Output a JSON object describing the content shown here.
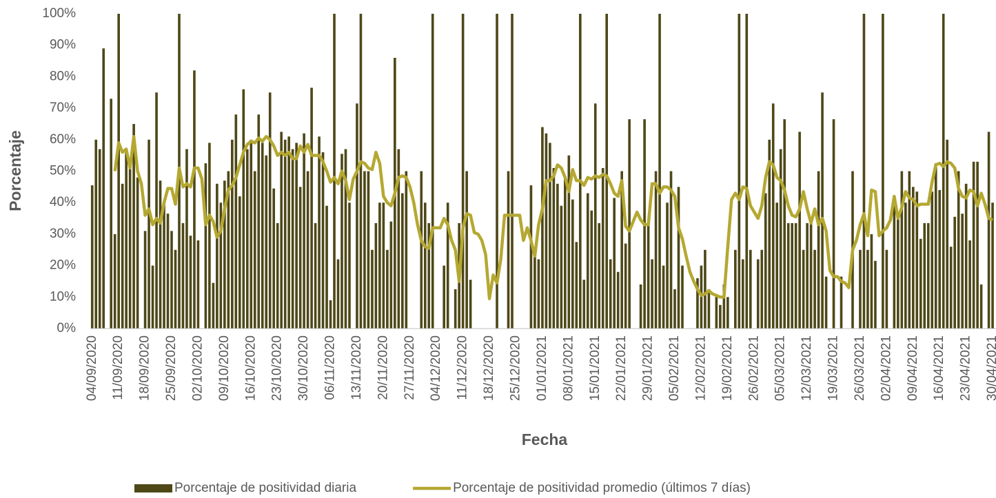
{
  "chart_data": {
    "type": "bar",
    "xlabel": "Fecha",
    "ylabel": "Porcentaje",
    "categories": [
      "04/09/2020",
      null,
      null,
      null,
      null,
      null,
      null,
      "11/09/2020",
      null,
      null,
      null,
      null,
      null,
      null,
      "18/09/2020",
      null,
      null,
      null,
      null,
      null,
      null,
      "25/09/2020",
      null,
      null,
      null,
      null,
      null,
      null,
      "02/10/2020",
      null,
      null,
      null,
      null,
      null,
      null,
      "09/10/2020",
      null,
      null,
      null,
      null,
      null,
      null,
      "16/10/2020",
      null,
      null,
      null,
      null,
      null,
      null,
      "23/10/2020",
      null,
      null,
      null,
      null,
      null,
      null,
      "30/10/2020",
      null,
      null,
      null,
      null,
      null,
      null,
      "06/11/2020",
      null,
      null,
      null,
      null,
      null,
      null,
      "13/11/2020",
      null,
      null,
      null,
      null,
      null,
      null,
      "20/11/2020",
      null,
      null,
      null,
      null,
      null,
      null,
      "27/11/2020",
      null,
      null,
      null,
      null,
      null,
      null,
      "04/12/2020",
      null,
      null,
      null,
      null,
      null,
      null,
      "11/12/2020",
      null,
      null,
      null,
      null,
      null,
      null,
      "18/12/2020",
      null,
      null,
      null,
      null,
      null,
      null,
      "25/12/2020",
      null,
      null,
      null,
      null,
      null,
      null,
      "01/01/2021",
      null,
      null,
      null,
      null,
      null,
      null,
      "08/01/2021",
      null,
      null,
      null,
      null,
      null,
      null,
      "15/01/2021",
      null,
      null,
      null,
      null,
      null,
      null,
      "22/01/2021",
      null,
      null,
      null,
      null,
      null,
      null,
      "29/01/2021",
      null,
      null,
      null,
      null,
      null,
      null,
      "05/02/2021",
      null,
      null,
      null,
      null,
      null,
      null,
      "12/02/2021",
      null,
      null,
      null,
      null,
      null,
      null,
      "19/02/2021",
      null,
      null,
      null,
      null,
      null,
      null,
      "26/02/2021",
      null,
      null,
      null,
      null,
      null,
      null,
      "05/03/2021",
      null,
      null,
      null,
      null,
      null,
      null,
      "12/03/2021",
      null,
      null,
      null,
      null,
      null,
      null,
      "19/03/2021",
      null,
      null,
      null,
      null,
      null,
      null,
      "26/03/2021",
      null,
      null,
      null,
      null,
      null,
      null,
      "02/04/2021",
      null,
      null,
      null,
      null,
      null,
      null,
      "09/04/2021",
      null,
      null,
      null,
      null,
      null,
      null,
      "16/04/2021",
      null,
      null,
      null,
      null,
      null,
      null,
      "23/04/2021",
      null,
      null,
      null,
      null,
      null,
      null,
      "30/04/2021"
    ],
    "series": [
      {
        "name": "Porcentaje de positividad diaria",
        "type": "bar",
        "color": "#4e4818",
        "values": [
          45.5,
          60,
          57,
          89,
          null,
          73,
          30,
          100,
          46,
          56,
          52,
          65,
          48,
          null,
          31,
          60,
          20,
          75,
          47,
          40,
          36.5,
          31,
          25,
          100,
          33.5,
          57,
          29.5,
          82,
          28,
          null,
          52.5,
          59,
          14.5,
          46,
          40,
          47,
          50,
          60,
          68,
          42,
          76,
          57,
          60,
          50,
          68,
          59,
          55,
          75,
          44.5,
          33.5,
          62.5,
          60,
          61,
          57,
          59,
          45,
          62,
          50,
          76.5,
          33.5,
          61,
          56,
          39,
          9,
          100,
          22,
          55.5,
          57,
          40,
          null,
          71.5,
          100,
          50,
          50,
          25,
          33.5,
          40,
          40,
          25,
          34,
          86,
          57,
          43,
          50,
          null,
          null,
          null,
          50,
          40,
          33.5,
          100,
          null,
          null,
          20,
          40,
          null,
          12.5,
          33.5,
          100,
          50,
          15.5,
          null,
          null,
          null,
          null,
          null,
          null,
          100,
          null,
          null,
          50,
          100,
          null,
          null,
          null,
          null,
          45.5,
          25,
          22,
          64,
          62,
          59,
          51,
          46,
          39,
          48,
          55,
          41,
          27.5,
          100,
          15.5,
          43,
          37.5,
          71.5,
          33.5,
          51,
          100,
          22,
          41.5,
          18,
          50,
          27,
          66.5,
          null,
          null,
          14,
          66.5,
          33.5,
          22,
          50,
          100,
          20,
          40,
          50,
          12.5,
          45,
          20,
          null,
          null,
          null,
          16,
          20,
          25,
          12.5,
          null,
          10,
          7.5,
          14,
          10,
          null,
          25,
          100,
          22,
          100,
          25,
          null,
          22,
          25,
          43,
          60,
          71.5,
          40,
          57,
          66.5,
          33.5,
          33.5,
          33.5,
          62.5,
          25,
          33.5,
          33.5,
          25,
          50,
          75,
          16.5,
          null,
          66.5,
          null,
          16.5,
          null,
          null,
          50,
          null,
          25,
          100,
          25,
          30,
          21.5,
          null,
          100,
          25,
          null,
          40,
          36,
          50,
          40,
          50,
          45,
          43.5,
          28.5,
          33.5,
          33.5,
          43.5,
          52.5,
          44,
          100,
          60,
          26,
          35.5,
          50,
          36.5,
          46,
          28,
          53,
          53,
          14,
          null,
          62.5,
          40
        ]
      },
      {
        "name": "Porcentaje de positividad promedio (últimos 7 días)",
        "type": "line",
        "color": "#b5a832",
        "values": [
          null,
          null,
          null,
          null,
          null,
          null,
          50,
          59,
          56,
          57,
          51,
          61,
          50,
          46,
          36,
          38,
          33,
          35,
          33.5,
          40,
          44.5,
          44.5,
          39.5,
          51,
          45,
          46,
          45,
          51,
          51,
          47.5,
          33,
          36,
          34,
          29,
          31,
          38,
          44,
          45.5,
          48,
          52,
          56,
          58.5,
          59.5,
          59,
          60.5,
          59.5,
          61,
          60,
          58,
          55,
          56,
          55,
          56,
          54,
          54,
          58,
          56,
          58.5,
          55,
          55,
          55,
          53,
          50,
          46.5,
          48,
          46,
          50,
          47,
          41,
          47.5,
          50,
          53,
          52.5,
          51,
          50.5,
          56,
          52.5,
          42,
          40,
          39,
          43,
          48,
          48.5,
          48,
          45,
          40,
          33,
          28,
          26,
          25.5,
          32,
          32,
          32,
          35,
          33,
          28,
          25,
          15,
          32,
          36.5,
          36,
          30.5,
          30,
          28,
          23.5,
          9.5,
          17,
          14.5,
          22,
          36,
          36,
          36,
          36,
          36,
          28,
          32,
          28,
          23,
          33,
          38,
          47,
          47,
          48.5,
          52,
          51,
          48,
          43.5,
          50.5,
          47,
          47,
          45.5,
          48,
          47.5,
          48.5,
          48,
          49,
          48.5,
          46,
          43,
          42,
          47,
          32.5,
          31,
          34,
          37,
          34.5,
          33,
          33,
          46,
          46,
          43,
          45,
          45,
          44,
          42,
          32,
          28.5,
          23,
          18,
          15,
          12.5,
          10.5,
          11,
          12,
          11,
          10.5,
          10,
          10,
          26,
          41,
          43,
          41,
          45,
          44.5,
          39,
          37,
          35,
          39,
          48,
          53,
          52,
          48,
          47,
          44,
          39,
          36,
          35.5,
          38,
          43.5,
          38,
          33.5,
          38,
          33,
          35,
          31,
          18.5,
          16.5,
          16.5,
          15,
          14.5,
          13,
          25,
          28,
          33,
          36.5,
          29.5,
          44,
          43.5,
          29.5,
          31,
          32,
          34.5,
          42,
          35,
          38.5,
          43.5,
          41.5,
          41,
          39,
          39.5,
          39.5,
          39.5,
          46.5,
          52,
          52.5,
          51.5,
          53,
          52.5,
          51,
          44.5,
          42,
          41.5,
          44,
          43.5,
          39,
          43,
          39.5,
          35,
          34.5
        ]
      }
    ],
    "ylim": [
      0,
      100
    ],
    "yticks": [
      {
        "value": 0,
        "label": "0%"
      },
      {
        "value": 10,
        "label": "10%"
      },
      {
        "value": 20,
        "label": "20%"
      },
      {
        "value": 30,
        "label": "30%"
      },
      {
        "value": 40,
        "label": "40%"
      },
      {
        "value": 50,
        "label": "50%"
      },
      {
        "value": 60,
        "label": "60%"
      },
      {
        "value": 70,
        "label": "70%"
      },
      {
        "value": 80,
        "label": "80%"
      },
      {
        "value": 90,
        "label": "90%"
      },
      {
        "value": 100,
        "label": "100%"
      }
    ],
    "legend": "bottom"
  }
}
